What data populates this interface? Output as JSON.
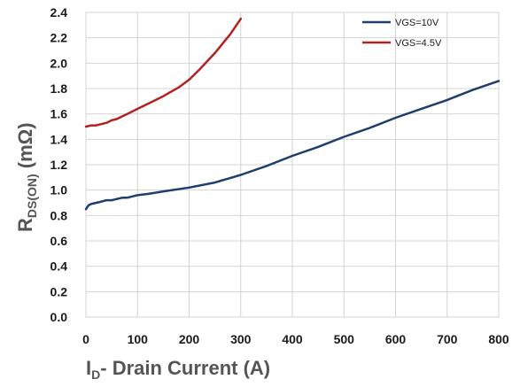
{
  "chart_data": {
    "type": "line",
    "x_ticks": [
      "0",
      "100",
      "200",
      "300",
      "400",
      "500",
      "600",
      "700",
      "800"
    ],
    "y_ticks": [
      "0.0",
      "0.2",
      "0.4",
      "0.6",
      "0.8",
      "1.0",
      "1.2",
      "1.4",
      "1.6",
      "1.8",
      "2.0",
      "2.2",
      "2.4"
    ],
    "xlim": [
      0,
      800
    ],
    "ylim": [
      0,
      2.4
    ],
    "grid": true,
    "legend_position": "top-right",
    "xlabel": {
      "main": "I",
      "sub": "D",
      "rest": "- Drain Current (A)"
    },
    "ylabel": {
      "main": "R",
      "sub": "DS(ON)",
      "rest": " (mΩ)"
    },
    "series": [
      {
        "name": "VGS=10V",
        "color": "#1f3e6e",
        "x": [
          0,
          5,
          10,
          20,
          30,
          40,
          50,
          60,
          70,
          80,
          90,
          100,
          120,
          150,
          200,
          250,
          300,
          350,
          400,
          450,
          500,
          550,
          600,
          650,
          700,
          750,
          800
        ],
        "y": [
          0.85,
          0.88,
          0.89,
          0.9,
          0.91,
          0.92,
          0.92,
          0.93,
          0.94,
          0.94,
          0.95,
          0.96,
          0.97,
          0.99,
          1.02,
          1.06,
          1.12,
          1.19,
          1.27,
          1.34,
          1.42,
          1.49,
          1.57,
          1.64,
          1.71,
          1.79,
          1.86
        ]
      },
      {
        "name": "VGS=4.5V",
        "color": "#b22222",
        "x": [
          0,
          10,
          20,
          30,
          40,
          50,
          60,
          70,
          80,
          100,
          120,
          150,
          180,
          200,
          220,
          250,
          280,
          300
        ],
        "y": [
          1.5,
          1.51,
          1.51,
          1.52,
          1.53,
          1.55,
          1.56,
          1.58,
          1.6,
          1.64,
          1.68,
          1.74,
          1.81,
          1.87,
          1.95,
          2.08,
          2.23,
          2.35
        ]
      }
    ]
  }
}
